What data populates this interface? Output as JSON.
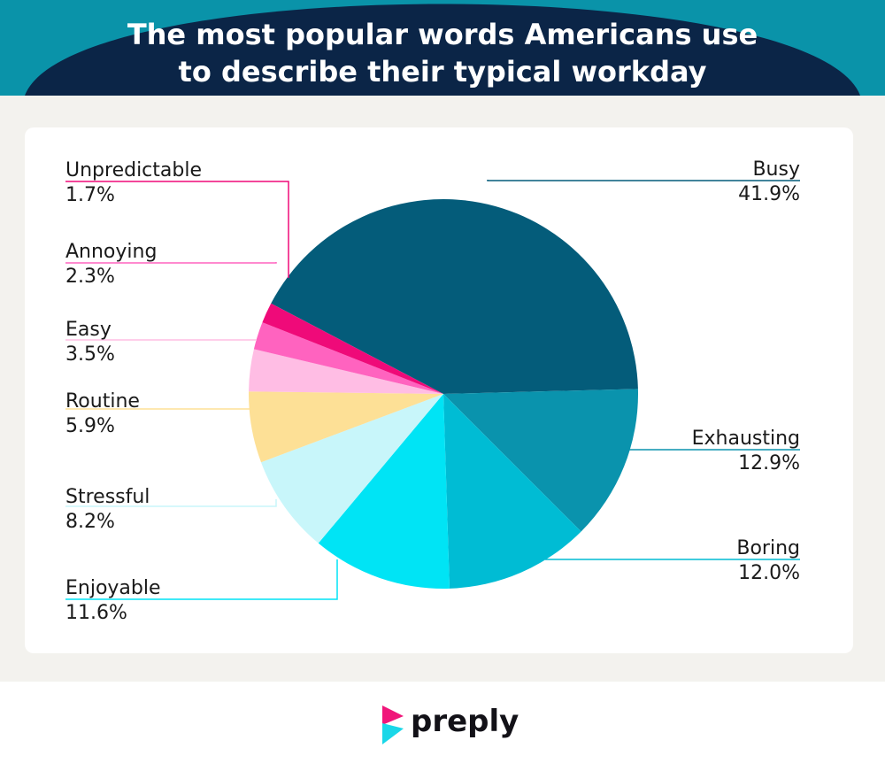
{
  "title_lines": [
    "The most popular words Americans use",
    "to describe their typical workday"
  ],
  "brand": {
    "name": "preply"
  },
  "colors": {
    "header_arc": "#0b2547",
    "header_band": "#0a93a9",
    "background": "#f3f2ee"
  },
  "chart_data": {
    "type": "pie",
    "title": "The most popular words Americans use to describe their typical workday",
    "legend": "none",
    "slices": [
      {
        "label": "Busy",
        "value": 41.9,
        "display": "41.9%",
        "color": "#045c7a"
      },
      {
        "label": "Exhausting",
        "value": 12.9,
        "display": "12.9%",
        "color": "#0a93ad"
      },
      {
        "label": "Boring",
        "value": 12.0,
        "display": "12.0%",
        "color": "#00bcd4"
      },
      {
        "label": "Enjoyable",
        "value": 11.6,
        "display": "11.6%",
        "color": "#00e4f5"
      },
      {
        "label": "Stressful",
        "value": 8.2,
        "display": "8.2%",
        "color": "#c8f6fa"
      },
      {
        "label": "Routine",
        "value": 5.9,
        "display": "5.9%",
        "color": "#fde096"
      },
      {
        "label": "Easy",
        "value": 3.5,
        "display": "3.5%",
        "color": "#ffbde4"
      },
      {
        "label": "Annoying",
        "value": 2.3,
        "display": "2.3%",
        "color": "#ff63bf"
      },
      {
        "label": "Unpredictable",
        "value": 1.7,
        "display": "1.7%",
        "color": "#ef0a79"
      }
    ]
  }
}
